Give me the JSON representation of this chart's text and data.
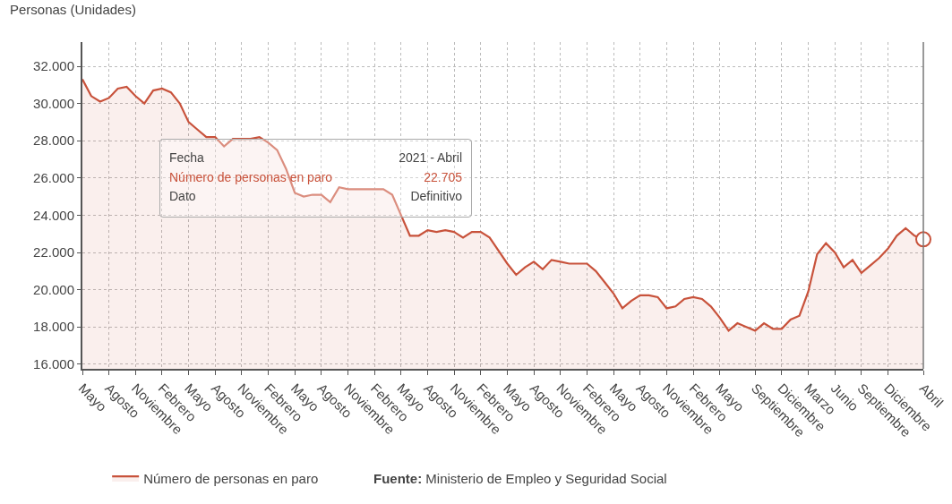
{
  "chart_data": {
    "type": "area",
    "ylabel": "Personas (Unidades)",
    "categories": [
      "Mayo",
      null,
      null,
      "Agosto",
      null,
      null,
      "Noviembre",
      null,
      null,
      "Febrero",
      null,
      null,
      "Mayo",
      null,
      null,
      "Agosto",
      null,
      null,
      "Noviembre",
      null,
      null,
      "Febrero",
      null,
      null,
      "Mayo",
      null,
      null,
      "Agosto",
      null,
      null,
      "Noviembre",
      null,
      null,
      "Febrero",
      null,
      null,
      "Mayo",
      null,
      null,
      "Agosto",
      null,
      null,
      "Noviembre",
      null,
      null,
      "Febrero",
      null,
      null,
      "Mayo",
      null,
      null,
      "Agosto",
      null,
      null,
      "Noviembre",
      null,
      null,
      "Febrero",
      null,
      null,
      "Mayo",
      null,
      null,
      "Agosto",
      null,
      null,
      "Noviembre",
      null,
      null,
      "Febrero",
      null,
      null,
      "Mayo",
      null,
      null,
      null,
      "Septiembre",
      null,
      null,
      "Diciembre",
      null,
      null,
      "Marzo",
      null,
      null,
      "Junio",
      null,
      null,
      "Septiembre",
      null,
      null,
      "Diciembre",
      null,
      null,
      null,
      "Abril"
    ],
    "series": [
      {
        "name": "Número de personas en paro",
        "color": "#c8523b",
        "values": [
          31300,
          30400,
          30100,
          30300,
          30800,
          30900,
          30400,
          30000,
          30700,
          30800,
          30600,
          30000,
          29000,
          28600,
          28200,
          28200,
          27700,
          28100,
          28100,
          28100,
          28200,
          27900,
          27500,
          26500,
          25200,
          25000,
          25100,
          25100,
          24700,
          25500,
          25400,
          25400,
          25400,
          25400,
          25400,
          25100,
          24000,
          22900,
          22900,
          23200,
          23100,
          23200,
          23100,
          22800,
          23100,
          23100,
          22800,
          22100,
          21400,
          20800,
          21200,
          21500,
          21100,
          21600,
          21500,
          21400,
          21400,
          21400,
          21000,
          20400,
          19800,
          19000,
          19400,
          19700,
          19700,
          19600,
          19000,
          19100,
          19500,
          19600,
          19500,
          19100,
          18500,
          17800,
          18200,
          18000,
          17800,
          18200,
          17900,
          17900,
          18400,
          18600,
          19900,
          21900,
          22500,
          22000,
          21200,
          21600,
          20900,
          21300,
          21700,
          22200,
          22900,
          23300,
          22900,
          22705
        ]
      }
    ],
    "ylim": [
      15750,
      33300
    ],
    "yticks": [
      {
        "value": 16000,
        "label": "16.000"
      },
      {
        "value": 18000,
        "label": "18.000"
      },
      {
        "value": 20000,
        "label": "20.000"
      },
      {
        "value": 22000,
        "label": "22.000"
      },
      {
        "value": 24000,
        "label": "24.000"
      },
      {
        "value": 26000,
        "label": "26.000"
      },
      {
        "value": 28000,
        "label": "28.000"
      },
      {
        "value": 30000,
        "label": "30.000"
      },
      {
        "value": 32000,
        "label": "32.000"
      }
    ],
    "grid": true,
    "legend": "bottom",
    "marker": "none",
    "line_style": "solid",
    "annotations": [
      "Fecha",
      "2021 - Abril",
      "Número de personas en paro",
      "22.705",
      "Dato",
      "Definitivo",
      "Fuente: Ministerio de Empleo y Seguridad Social"
    ]
  }
}
